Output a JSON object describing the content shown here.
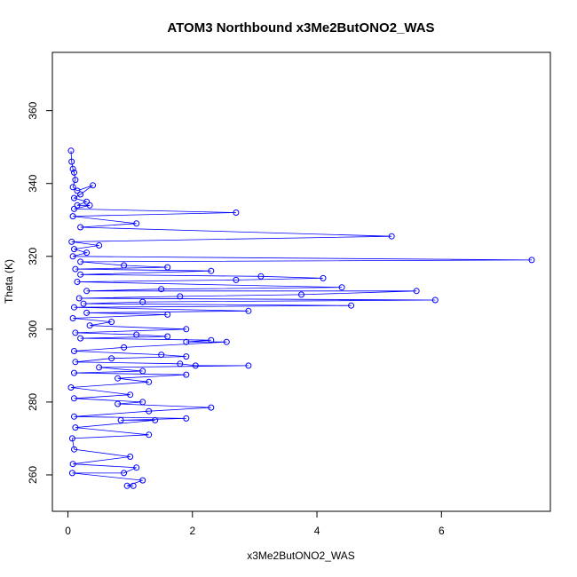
{
  "chart_data": {
    "type": "scatter",
    "title": "ATOM3 Northbound x3Me2ButONO2_WAS",
    "xlabel": "x3Me2ButONO2_WAS",
    "ylabel": "Theta (K)",
    "xlim": [
      -0.25,
      7.75
    ],
    "ylim": [
      250,
      376
    ],
    "xticks": [
      0,
      2,
      4,
      6
    ],
    "yticks": [
      260,
      280,
      300,
      320,
      340,
      360
    ],
    "grid": false,
    "legend": "none",
    "series": [
      {
        "color": "#0000ff",
        "marker": "open-circle",
        "connected": true,
        "points": [
          [
            0.05,
            349
          ],
          [
            0.06,
            346
          ],
          [
            0.08,
            344
          ],
          [
            0.1,
            343
          ],
          [
            0.12,
            341
          ],
          [
            0.08,
            339
          ],
          [
            0.15,
            338
          ],
          [
            0.4,
            339.5
          ],
          [
            0.2,
            337
          ],
          [
            0.1,
            336
          ],
          [
            0.3,
            335
          ],
          [
            0.15,
            334
          ],
          [
            0.35,
            334
          ],
          [
            0.1,
            333
          ],
          [
            2.7,
            332
          ],
          [
            0.08,
            331
          ],
          [
            1.1,
            329
          ],
          [
            0.2,
            328
          ],
          [
            5.2,
            325.5
          ],
          [
            0.06,
            324
          ],
          [
            0.5,
            323
          ],
          [
            0.1,
            322
          ],
          [
            0.3,
            321
          ],
          [
            0.08,
            320
          ],
          [
            7.45,
            319
          ],
          [
            0.2,
            318.5
          ],
          [
            0.9,
            317.5
          ],
          [
            1.6,
            317
          ],
          [
            0.12,
            316.5
          ],
          [
            2.3,
            316
          ],
          [
            0.2,
            315
          ],
          [
            3.1,
            314.5
          ],
          [
            4.1,
            314
          ],
          [
            2.7,
            313.5
          ],
          [
            0.15,
            313
          ],
          [
            4.4,
            311.5
          ],
          [
            1.5,
            311
          ],
          [
            0.3,
            310.5
          ],
          [
            5.6,
            310.5
          ],
          [
            3.75,
            309.5
          ],
          [
            1.8,
            309
          ],
          [
            0.18,
            308.5
          ],
          [
            5.9,
            308
          ],
          [
            1.2,
            307.5
          ],
          [
            0.25,
            307
          ],
          [
            4.55,
            306.5
          ],
          [
            0.1,
            306
          ],
          [
            2.9,
            305
          ],
          [
            0.3,
            304.5
          ],
          [
            1.6,
            304
          ],
          [
            0.08,
            303
          ],
          [
            0.7,
            302
          ],
          [
            0.35,
            301
          ],
          [
            1.9,
            300
          ],
          [
            0.12,
            299
          ],
          [
            1.1,
            298.5
          ],
          [
            1.6,
            298
          ],
          [
            0.2,
            297.5
          ],
          [
            2.3,
            297
          ],
          [
            1.9,
            296.5
          ],
          [
            2.55,
            296.5
          ],
          [
            0.9,
            295
          ],
          [
            0.1,
            294
          ],
          [
            1.5,
            293
          ],
          [
            1.9,
            292.5
          ],
          [
            0.7,
            292
          ],
          [
            0.12,
            291
          ],
          [
            1.8,
            290.5
          ],
          [
            2.05,
            290
          ],
          [
            2.9,
            290
          ],
          [
            0.5,
            289.5
          ],
          [
            1.2,
            288.5
          ],
          [
            0.1,
            288
          ],
          [
            1.9,
            287.5
          ],
          [
            0.8,
            286.5
          ],
          [
            1.3,
            285.5
          ],
          [
            0.05,
            284
          ],
          [
            1.0,
            282
          ],
          [
            0.1,
            281
          ],
          [
            1.2,
            280
          ],
          [
            0.8,
            279.5
          ],
          [
            2.3,
            278.5
          ],
          [
            1.3,
            277.5
          ],
          [
            0.1,
            276
          ],
          [
            1.9,
            275.5
          ],
          [
            0.85,
            275
          ],
          [
            1.4,
            275
          ],
          [
            0.12,
            273
          ],
          [
            1.3,
            271
          ],
          [
            0.07,
            270
          ],
          [
            0.1,
            267
          ],
          [
            1.0,
            265
          ],
          [
            0.08,
            263
          ],
          [
            1.1,
            262
          ],
          [
            0.9,
            260.5
          ],
          [
            0.07,
            260.5
          ],
          [
            1.2,
            258.5
          ],
          [
            0.95,
            257
          ],
          [
            1.05,
            257
          ]
        ]
      }
    ]
  }
}
